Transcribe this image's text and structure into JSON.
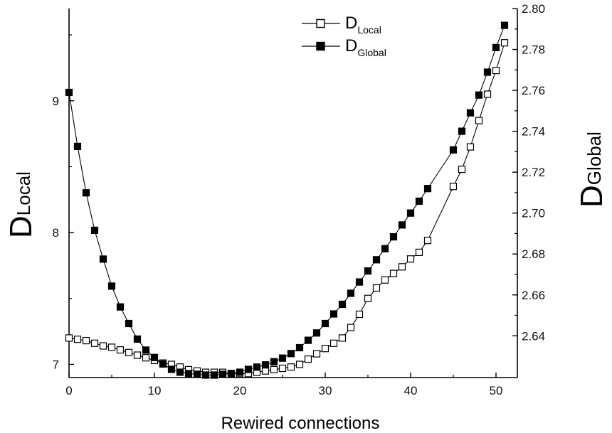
{
  "chart_data": {
    "type": "scatter",
    "xlabel": "Rewired connections",
    "ylabel_left": {
      "main": "D",
      "sub": "Local"
    },
    "ylabel_right": {
      "main": "D",
      "sub": "Global"
    },
    "xlim": [
      0,
      52.5
    ],
    "ylim_left": [
      6.9,
      9.7
    ],
    "ylim_right": [
      2.6196,
      2.8
    ],
    "x_ticks": [
      0,
      10,
      20,
      30,
      40,
      50
    ],
    "y_left_ticks": [
      7,
      8,
      9
    ],
    "y_right_ticks": [
      2.64,
      2.66,
      2.68,
      2.7,
      2.72,
      2.74,
      2.76,
      2.78,
      2.8
    ],
    "grid": false,
    "legend_position": "top-center",
    "series": [
      {
        "name": "D",
        "name_sub": "Local",
        "axis": "left",
        "marker": "open-square",
        "color": "#000000",
        "x": [
          0,
          1,
          2,
          3,
          4,
          5,
          6,
          7,
          8,
          9,
          10,
          11,
          12,
          13,
          14,
          15,
          16,
          17,
          18,
          19,
          20,
          21,
          22,
          23,
          24,
          25,
          26,
          27,
          28,
          29,
          30,
          31,
          32,
          33,
          34,
          35,
          36,
          37,
          38,
          39,
          40,
          41,
          42,
          45,
          46,
          47,
          48,
          49,
          50,
          51
        ],
        "y": [
          7.2,
          7.19,
          7.18,
          7.16,
          7.14,
          7.13,
          7.11,
          7.09,
          7.07,
          7.05,
          7.03,
          7.01,
          7.0,
          6.98,
          6.96,
          6.95,
          6.94,
          6.94,
          6.94,
          6.93,
          6.93,
          6.93,
          6.94,
          6.95,
          6.96,
          6.97,
          6.98,
          7.0,
          7.04,
          7.08,
          7.12,
          7.16,
          7.2,
          7.28,
          7.38,
          7.5,
          7.58,
          7.64,
          7.69,
          7.74,
          7.8,
          7.85,
          7.94,
          8.35,
          8.48,
          8.65,
          8.85,
          9.05,
          9.23,
          9.44
        ]
      },
      {
        "name": "D",
        "name_sub": "Global",
        "axis": "right",
        "marker": "filled-square",
        "color": "#000000",
        "x": [
          0,
          1,
          2,
          3,
          4,
          5,
          6,
          7,
          8,
          9,
          10,
          11,
          12,
          13,
          14,
          15,
          16,
          17,
          18,
          19,
          20,
          21,
          22,
          23,
          24,
          25,
          26,
          27,
          28,
          29,
          30,
          31,
          32,
          33,
          34,
          35,
          36,
          37,
          38,
          39,
          40,
          41,
          42,
          45,
          46,
          47,
          48,
          49,
          50,
          51
        ],
        "y": [
          2.759,
          2.7326,
          2.7099,
          2.6916,
          2.6775,
          2.6643,
          2.6541,
          2.646,
          2.6384,
          2.633,
          2.6294,
          2.6262,
          2.6236,
          2.6222,
          2.6215,
          2.6212,
          2.6208,
          2.6208,
          2.6212,
          2.6215,
          2.6222,
          2.6236,
          2.6247,
          2.6258,
          2.6273,
          2.6291,
          2.6313,
          2.6342,
          2.6378,
          2.6414,
          2.646,
          2.6507,
          2.6554,
          2.6608,
          2.6663,
          2.6717,
          2.6772,
          2.6826,
          2.6884,
          2.6942,
          2.7,
          2.7058,
          2.712,
          2.7309,
          2.74,
          2.749,
          2.7577,
          2.7689,
          2.7809,
          2.7918
        ]
      }
    ]
  }
}
